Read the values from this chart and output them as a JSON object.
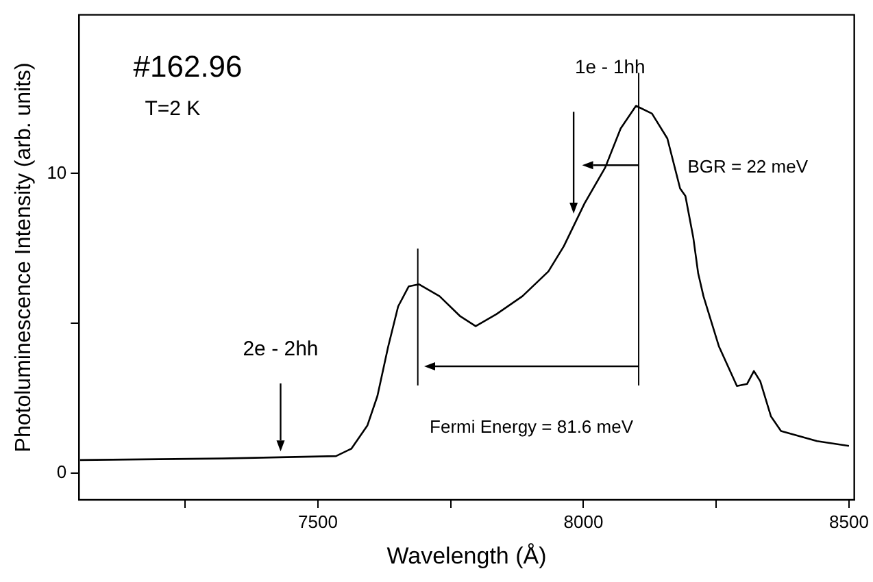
{
  "chart_data": {
    "type": "line",
    "xlabel": "Wavelength (Å)",
    "ylabel": "Photoluminescence Intensity (arb. units)",
    "x": [
      7052,
      7320,
      7534,
      7563,
      7593,
      7612,
      7632,
      7651,
      7671,
      7690,
      7729,
      7768,
      7797,
      7836,
      7885,
      7934,
      7963,
      8002,
      8041,
      8070,
      8099,
      8129,
      8158,
      8182,
      8192,
      8207,
      8216,
      8226,
      8255,
      8289,
      8308,
      8321,
      8333,
      8353,
      8372,
      8440,
      8500
    ],
    "series": [
      {
        "color": "#000000",
        "values": [
          0.43,
          0.48,
          0.56,
          0.81,
          1.58,
          2.57,
          4.2,
          5.56,
          6.23,
          6.3,
          5.9,
          5.23,
          4.9,
          5.3,
          5.9,
          6.73,
          7.57,
          9.0,
          10.2,
          11.5,
          12.26,
          12.0,
          11.17,
          9.5,
          9.25,
          7.84,
          6.67,
          5.9,
          4.23,
          2.9,
          2.97,
          3.4,
          3.06,
          1.89,
          1.4,
          1.06,
          0.9
        ]
      }
    ],
    "xlim": [
      7050,
      8510
    ],
    "xticks": [
      {
        "value": 7250,
        "label": null
      },
      7500,
      {
        "value": 7750,
        "label": null
      },
      8000,
      {
        "value": 8250,
        "label": null
      },
      8500
    ],
    "ylim": [
      -0.9,
      15.3
    ],
    "yticks": [
      0,
      {
        "value": 5,
        "label": null
      },
      10
    ],
    "grid": false,
    "legend": false,
    "marker": "none",
    "line_style": "solid",
    "ref_lines": [
      {
        "axis": "x",
        "value": 7688,
        "color": "#000000"
      },
      {
        "axis": "x",
        "value": 8104,
        "color": "#000000"
      }
    ],
    "annotations": [
      "#162.96",
      "T=2 K",
      "1e - 1hh",
      "2e - 2hh",
      "BGR = 22 meV",
      {
        "text": "Fermi Energy = 81.6 meV",
        "x": 7700,
        "y": 3.56
      }
    ]
  }
}
